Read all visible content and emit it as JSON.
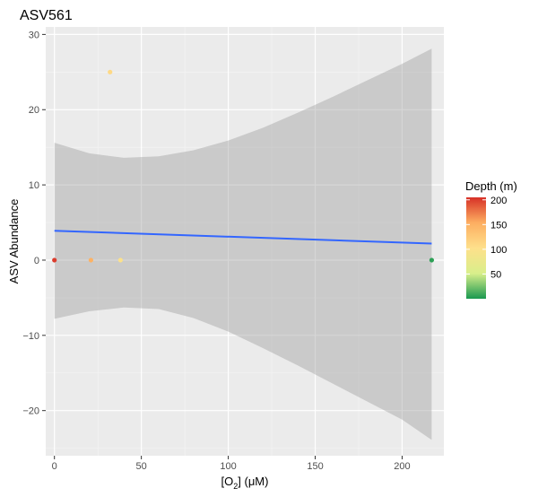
{
  "chart_data": {
    "type": "scatter",
    "title": "ASV561",
    "xlabel_prefix": "[O",
    "xlabel_sub": "2",
    "xlabel_suffix": "] (μM)",
    "ylabel": "ASV Abundance",
    "xlim": [
      -5,
      224
    ],
    "ylim": [
      -26,
      31
    ],
    "x_ticks": [
      0,
      50,
      100,
      150,
      200
    ],
    "y_ticks": [
      -20,
      -10,
      0,
      10,
      20,
      30
    ],
    "grid": true,
    "legend": {
      "title": "Depth (m)",
      "placement": "right",
      "ticks": [
        50,
        100,
        150,
        200
      ],
      "range": [
        0,
        205
      ],
      "colors": [
        "#1a9850",
        "#d9ef8b",
        "#fee08b",
        "#fdae61",
        "#d73027"
      ]
    },
    "points": [
      {
        "x": 0,
        "y": 0,
        "depth": 200
      },
      {
        "x": 21,
        "y": 0,
        "depth": 150
      },
      {
        "x": 32,
        "y": 25,
        "depth": 110
      },
      {
        "x": 38,
        "y": 0,
        "depth": 100
      },
      {
        "x": 217,
        "y": 0,
        "depth": 5
      }
    ],
    "fit_line": {
      "color": "#3366ff",
      "x": [
        0,
        217
      ],
      "y": [
        3.9,
        2.2
      ]
    },
    "confidence_band": {
      "x": [
        0,
        20,
        40,
        60,
        80,
        100,
        120,
        140,
        160,
        180,
        200,
        217
      ],
      "upper": [
        15.6,
        14.2,
        13.6,
        13.8,
        14.6,
        15.9,
        17.6,
        19.6,
        21.7,
        23.9,
        26.1,
        28.1
      ],
      "lower": [
        -7.8,
        -6.8,
        -6.3,
        -6.5,
        -7.7,
        -9.5,
        -11.7,
        -14.0,
        -16.4,
        -18.8,
        -21.2,
        -23.9
      ]
    }
  }
}
